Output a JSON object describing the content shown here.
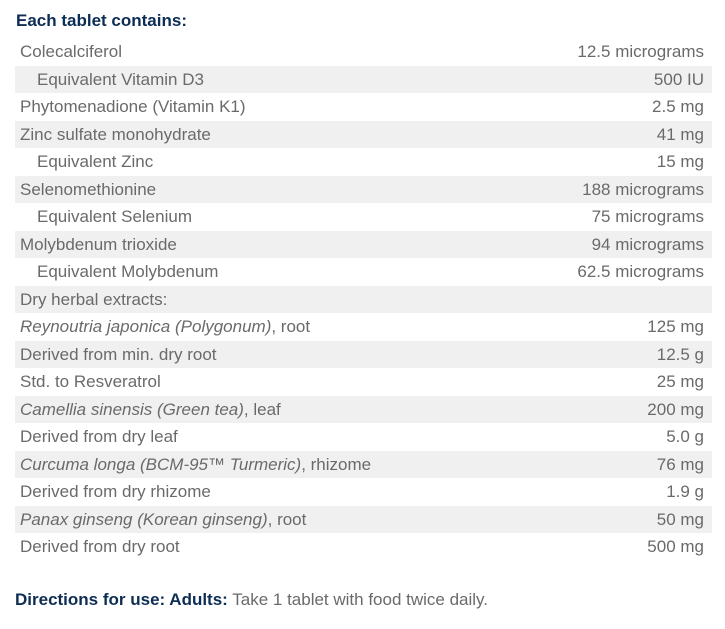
{
  "heading": "Each tablet contains:",
  "rows": [
    {
      "name": [
        {
          "t": "Colecalciferol"
        }
      ],
      "amount": "12.5 micrograms",
      "sub": false
    },
    {
      "name": [
        {
          "t": "Equivalent Vitamin D3"
        }
      ],
      "amount": "500 IU",
      "sub": true
    },
    {
      "name": [
        {
          "t": "Phytomenadione (Vitamin K1)"
        }
      ],
      "amount": "2.5 mg",
      "sub": false
    },
    {
      "name": [
        {
          "t": "Zinc sulfate monohydrate"
        }
      ],
      "amount": "41 mg",
      "sub": false
    },
    {
      "name": [
        {
          "t": "Equivalent Zinc"
        }
      ],
      "amount": "15 mg",
      "sub": true
    },
    {
      "name": [
        {
          "t": "Selenomethionine"
        }
      ],
      "amount": "188 micrograms",
      "sub": false
    },
    {
      "name": [
        {
          "t": "Equivalent Selenium"
        }
      ],
      "amount": "75 micrograms",
      "sub": true
    },
    {
      "name": [
        {
          "t": "Molybdenum trioxide"
        }
      ],
      "amount": "94 micrograms",
      "sub": false
    },
    {
      "name": [
        {
          "t": "Equivalent Molybdenum"
        }
      ],
      "amount": "62.5 micrograms",
      "sub": true
    },
    {
      "name": [
        {
          "t": "Dry herbal extracts:"
        }
      ],
      "amount": "",
      "sub": false
    },
    {
      "name": [
        {
          "t": "Reynoutria japonica (Polygonum)",
          "i": true
        },
        {
          "t": ", root"
        }
      ],
      "amount": "125 mg",
      "sub": false
    },
    {
      "name": [
        {
          "t": "Derived from min. dry root"
        }
      ],
      "amount": "12.5 g",
      "sub": false
    },
    {
      "name": [
        {
          "t": "Std. to Resveratrol"
        }
      ],
      "amount": "25 mg",
      "sub": false
    },
    {
      "name": [
        {
          "t": "Camellia sinensis (Green tea)",
          "i": true
        },
        {
          "t": ", leaf"
        }
      ],
      "amount": "200 mg",
      "sub": false
    },
    {
      "name": [
        {
          "t": "Derived from dry leaf"
        }
      ],
      "amount": "5.0 g",
      "sub": false
    },
    {
      "name": [
        {
          "t": "Curcuma longa (BCM-95™ Turmeric)",
          "i": true
        },
        {
          "t": ", rhizome"
        }
      ],
      "amount": "76 mg",
      "sub": false
    },
    {
      "name": [
        {
          "t": "Derived from dry rhizome"
        }
      ],
      "amount": "1.9 g",
      "sub": false
    },
    {
      "name": [
        {
          "t": "Panax ginseng (Korean ginseng)",
          "i": true
        },
        {
          "t": ", root"
        }
      ],
      "amount": "50 mg",
      "sub": false
    },
    {
      "name": [
        {
          "t": "Derived from dry root"
        }
      ],
      "amount": "500 mg",
      "sub": false
    }
  ],
  "directions": {
    "label": "Directions for use: Adults:",
    "text": " Take 1 tablet with food twice daily."
  }
}
